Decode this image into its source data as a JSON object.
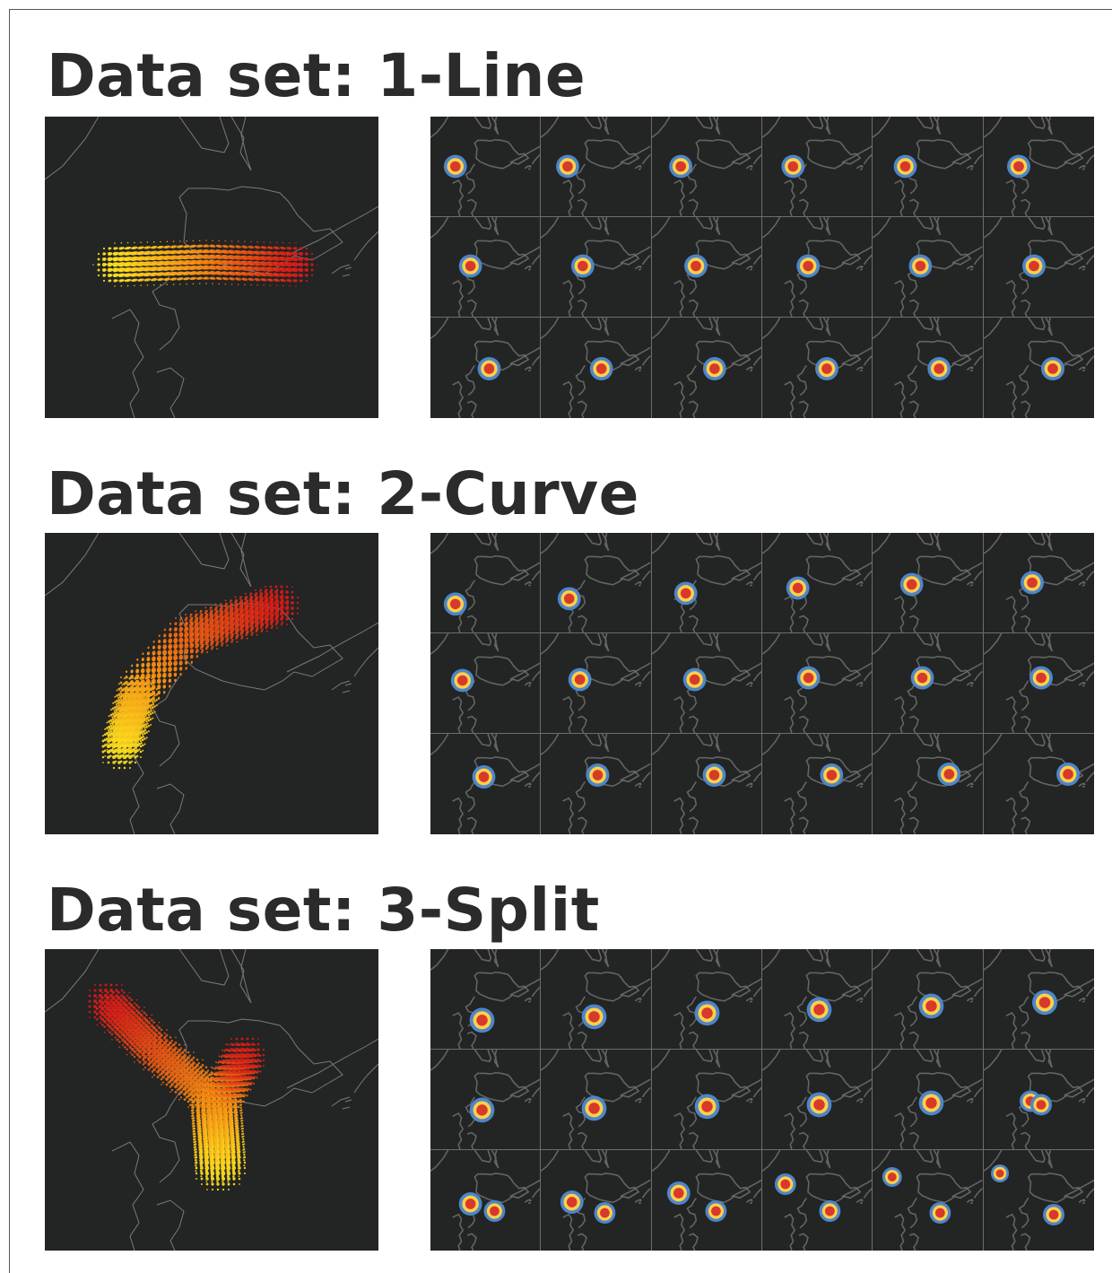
{
  "colors": {
    "panel_bg": "#232424",
    "coastline": "#7a7a7a",
    "cell_divider": "#6d6d6d",
    "outer_ring": "#4d86c8",
    "middle_ring": "#ffcf4a",
    "core": "#d63a2a",
    "gradient_low": "#ffe620",
    "gradient_mid": "#f58a12",
    "gradient_high": "#d71a17"
  },
  "sections": [
    {
      "title": "Data set: 1-Line"
    },
    {
      "title": "Data set: 2-Curve"
    },
    {
      "title": "Data set: 3-Split"
    }
  ]
}
